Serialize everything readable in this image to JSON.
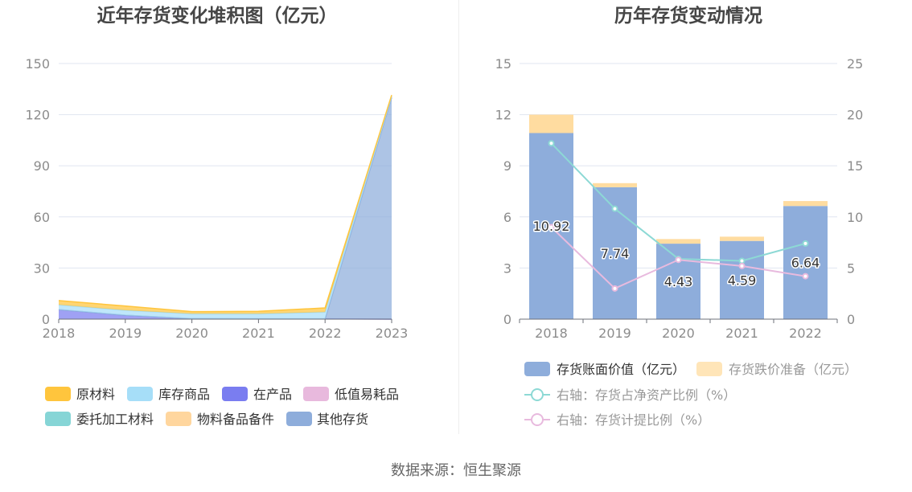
{
  "footer": {
    "source": "数据来源：恒生聚源"
  },
  "chart_data": [
    {
      "type": "area",
      "stacked": true,
      "title": "近年存货变化堆积图（亿元）",
      "categories": [
        "2018",
        "2019",
        "2020",
        "2021",
        "2022",
        "2023"
      ],
      "ylim": [
        0,
        150
      ],
      "yticks": [
        0,
        30,
        60,
        90,
        120,
        150
      ],
      "grid": true,
      "legend_position": "bottom",
      "series": [
        {
          "name": "原材料",
          "color": "#FFC53D",
          "values": [
            2.5,
            2.5,
            1.3,
            1.5,
            2.5,
            0.5
          ]
        },
        {
          "name": "库存商品",
          "color": "#A6DEF8",
          "values": [
            2.8,
            2.9,
            2.8,
            2.9,
            3.9,
            1.0
          ]
        },
        {
          "name": "在产品",
          "color": "#7A7DF0",
          "values": [
            5.6,
            2.3,
            0.3,
            0.2,
            0.2,
            0
          ]
        },
        {
          "name": "低值易耗品",
          "color": "#E8B9DD",
          "values": [
            0,
            0,
            0,
            0,
            0,
            0
          ]
        },
        {
          "name": "委托加工材料",
          "color": "#86D5D6",
          "values": [
            0,
            0,
            0,
            0,
            0,
            0
          ]
        },
        {
          "name": "物料备品备件",
          "color": "#FFD69E",
          "values": [
            0,
            0,
            0,
            0,
            0,
            0
          ]
        },
        {
          "name": "其他存货",
          "color": "#8EADDB",
          "values": [
            0,
            0,
            0,
            0,
            0,
            130.0
          ]
        }
      ]
    },
    {
      "type": "bar",
      "stacked": true,
      "title": "历年存货变动情况",
      "categories": [
        "2018",
        "2019",
        "2020",
        "2021",
        "2022"
      ],
      "ylim_left": [
        0,
        15
      ],
      "yticks_left": [
        0,
        3,
        6,
        9,
        12,
        15
      ],
      "ylim_right": [
        0,
        25
      ],
      "yticks_right": [
        0,
        5,
        10,
        15,
        20,
        25
      ],
      "grid": true,
      "legend_position": "bottom",
      "series": [
        {
          "name": "存货账面价值（亿元）",
          "type": "bar",
          "axis": "left",
          "color": "#8EADDB",
          "data_labels": true,
          "values": [
            10.92,
            7.74,
            4.43,
            4.59,
            6.64
          ]
        },
        {
          "name": "存货跌价准备（亿元）",
          "type": "bar",
          "axis": "left",
          "color": "#FFDCA0",
          "values": [
            1.08,
            0.24,
            0.27,
            0.25,
            0.29
          ]
        },
        {
          "name": "右轴：存货占净资产比例（%）",
          "type": "line",
          "axis": "right",
          "color": "#8DD9D5",
          "values": [
            17.2,
            10.8,
            5.9,
            5.7,
            7.4
          ]
        },
        {
          "name": "右轴：存货计提比例（%）",
          "type": "line",
          "axis": "right",
          "color": "#E8BADE",
          "values": [
            9.0,
            3.0,
            5.8,
            5.2,
            4.2
          ]
        }
      ]
    }
  ]
}
